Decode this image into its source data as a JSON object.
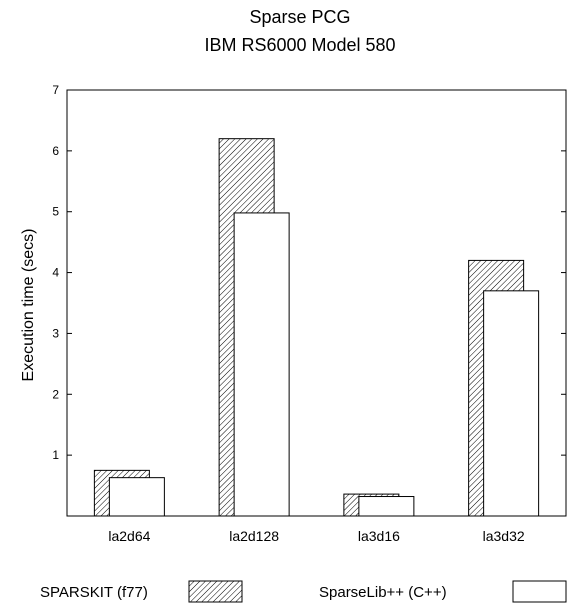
{
  "chart_data": {
    "type": "bar",
    "title": [
      "Sparse PCG",
      "IBM RS6000 Model 580"
    ],
    "xlabel": "",
    "ylabel": "Execution time (secs)",
    "ylim": [
      0,
      7
    ],
    "yticks": [
      1,
      2,
      3,
      4,
      5,
      6,
      7
    ],
    "categories": [
      "la2d64",
      "la2d128",
      "la3d16",
      "la3d32"
    ],
    "series": [
      {
        "name": "SPARSKIT (f77)",
        "fill": "hatched",
        "values": [
          0.75,
          6.2,
          0.36,
          4.2
        ]
      },
      {
        "name": "SparseLib++ (C++)",
        "fill": "white",
        "values": [
          0.63,
          4.98,
          0.32,
          3.7
        ]
      }
    ],
    "grid": false,
    "legend_position": "bottom"
  }
}
